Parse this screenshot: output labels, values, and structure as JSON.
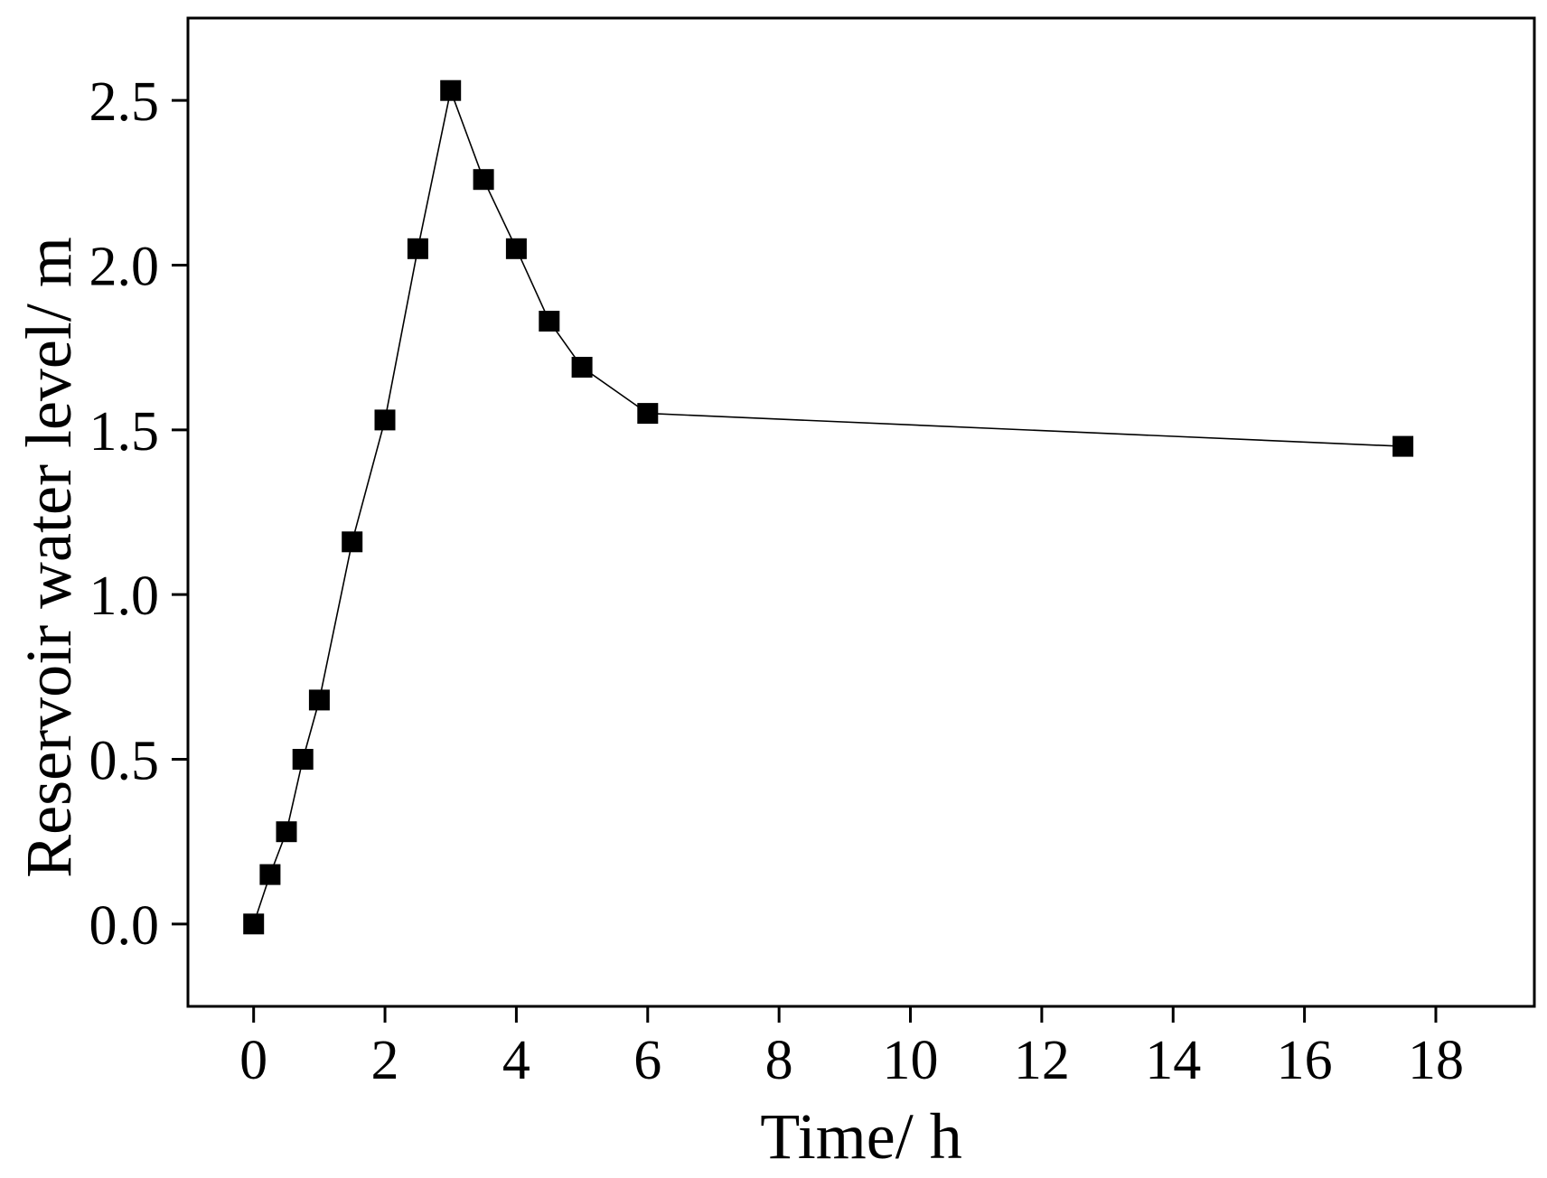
{
  "chart_data": {
    "type": "line",
    "xlabel": "Time/ h",
    "ylabel": "Reservoir water level/ m",
    "xlim": [
      -1,
      19.5
    ],
    "ylim": [
      -0.25,
      2.75
    ],
    "xticks": [
      0,
      2,
      4,
      6,
      8,
      10,
      12,
      14,
      16,
      18
    ],
    "xtick_labels": [
      "0",
      "2",
      "4",
      "6",
      "8",
      "10",
      "12",
      "14",
      "16",
      "18"
    ],
    "yticks": [
      0.0,
      0.5,
      1.0,
      1.5,
      2.0,
      2.5
    ],
    "ytick_labels": [
      "0.0",
      "0.5",
      "1.0",
      "1.5",
      "2.0",
      "2.5"
    ],
    "grid": false,
    "marker": "square",
    "colors": {
      "line": "#000000",
      "marker": "#000000",
      "axis": "#000000"
    },
    "series": [
      {
        "x": [
          0,
          0.25,
          0.5,
          0.75,
          1,
          1.5,
          2,
          2.5,
          3,
          3.5,
          4,
          4.5,
          5,
          6,
          17.5
        ],
        "y": [
          0.0,
          0.15,
          0.28,
          0.5,
          0.68,
          1.16,
          1.53,
          2.05,
          2.53,
          2.26,
          2.05,
          1.83,
          1.69,
          1.55,
          1.45
        ]
      }
    ]
  }
}
